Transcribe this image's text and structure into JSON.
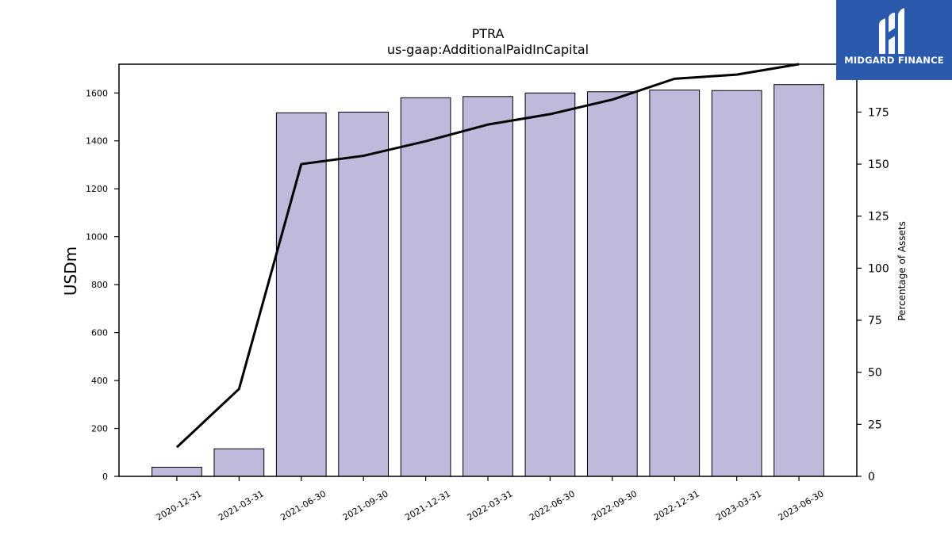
{
  "brand": {
    "name": "MIDGARD FINANCE",
    "color": "#2b5aac"
  },
  "chart_data": {
    "type": "bar",
    "title": "PTRA",
    "subtitle": "us-gaap:AdditionalPaidInCapital",
    "ylabel": "USDm",
    "y2label": "Percentage of Assets",
    "categories": [
      "2020-12-31",
      "2021-03-31",
      "2021-06-30",
      "2021-09-30",
      "2021-12-31",
      "2022-03-31",
      "2022-06-30",
      "2022-09-30",
      "2022-12-31",
      "2023-03-31",
      "2023-06-30"
    ],
    "series": [
      {
        "axis": "left",
        "type": "bar",
        "color": "#bebadb",
        "values": [
          38,
          115,
          1517,
          1520,
          1580,
          1585,
          1600,
          1605,
          1612,
          1610,
          1635
        ]
      },
      {
        "axis": "right",
        "type": "line",
        "color": "#000000",
        "values": [
          14,
          42,
          150,
          154,
          161,
          169,
          174,
          181,
          191,
          193,
          198
        ]
      }
    ],
    "ylim": [
      0,
      1720
    ],
    "y2lim": [
      0,
      198
    ],
    "yticks": [
      0,
      200,
      400,
      600,
      800,
      1000,
      1200,
      1400,
      1600
    ],
    "y2ticks": [
      0,
      25,
      50,
      75,
      100,
      125,
      150,
      175
    ],
    "grid": false
  }
}
